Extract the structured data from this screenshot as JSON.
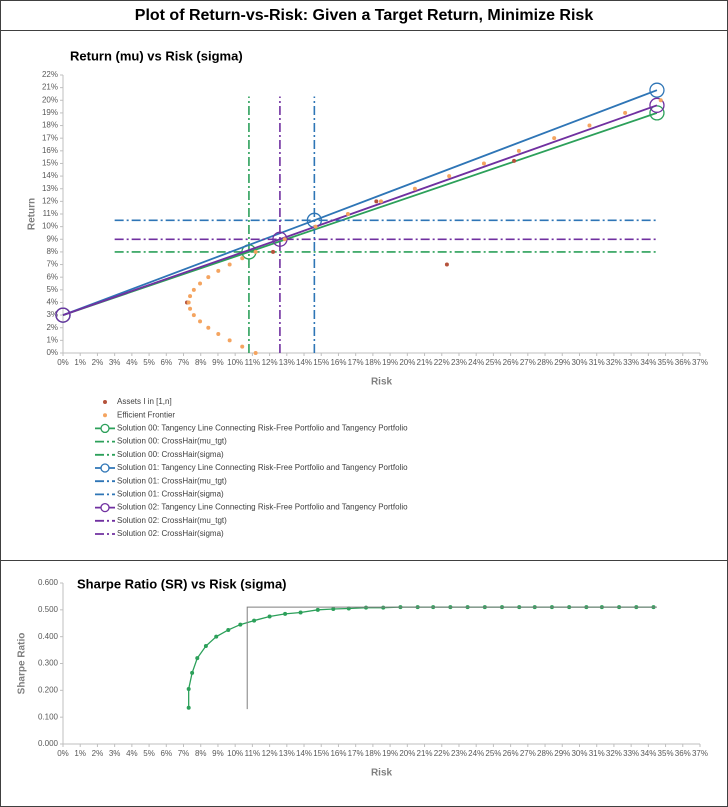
{
  "title": "Plot of Return-vs-Risk: Given a Target Return, Minimize Risk",
  "chart_data": [
    {
      "type": "scatter",
      "title": "Return (mu) vs Risk (sigma)",
      "x_label": "Risk",
      "y_label": "Return",
      "legend": true,
      "grid": false,
      "xlim": [
        0,
        37
      ],
      "xticks": [
        {
          "value": 0,
          "label": "0%"
        },
        {
          "value": 1,
          "label": "1%"
        },
        {
          "value": 2,
          "label": "2%"
        },
        {
          "value": 3,
          "label": "3%"
        },
        {
          "value": 4,
          "label": "4%"
        },
        {
          "value": 5,
          "label": "5%"
        },
        {
          "value": 6,
          "label": "6%"
        },
        {
          "value": 7,
          "label": "7%"
        },
        {
          "value": 8,
          "label": "8%"
        },
        {
          "value": 9,
          "label": "9%"
        },
        {
          "value": 10,
          "label": "10%"
        },
        {
          "value": 11,
          "label": "11%"
        },
        {
          "value": 12,
          "label": "12%"
        },
        {
          "value": 13,
          "label": "13%"
        },
        {
          "value": 14,
          "label": "14%"
        },
        {
          "value": 15,
          "label": "15%"
        },
        {
          "value": 16,
          "label": "16%"
        },
        {
          "value": 17,
          "label": "17%"
        },
        {
          "value": 18,
          "label": "18%"
        },
        {
          "value": 19,
          "label": "19%"
        },
        {
          "value": 20,
          "label": "20%"
        },
        {
          "value": 21,
          "label": "21%"
        },
        {
          "value": 22,
          "label": "22%"
        },
        {
          "value": 23,
          "label": "23%"
        },
        {
          "value": 24,
          "label": "24%"
        },
        {
          "value": 25,
          "label": "25%"
        },
        {
          "value": 26,
          "label": "26%"
        },
        {
          "value": 27,
          "label": "27%"
        },
        {
          "value": 28,
          "label": "28%"
        },
        {
          "value": 29,
          "label": "29%"
        },
        {
          "value": 30,
          "label": "30%"
        },
        {
          "value": 31,
          "label": "31%"
        },
        {
          "value": 32,
          "label": "32%"
        },
        {
          "value": 33,
          "label": "33%"
        },
        {
          "value": 34,
          "label": "34%"
        },
        {
          "value": 35,
          "label": "35%"
        },
        {
          "value": 36,
          "label": "36%"
        },
        {
          "value": 37,
          "label": "37%"
        }
      ],
      "ylim": [
        0,
        22
      ],
      "yticks": [
        {
          "value": 0,
          "label": "0%"
        },
        {
          "value": 1,
          "label": "1%"
        },
        {
          "value": 2,
          "label": "2%"
        },
        {
          "value": 3,
          "label": "3%"
        },
        {
          "value": 4,
          "label": "4%"
        },
        {
          "value": 5,
          "label": "5%"
        },
        {
          "value": 6,
          "label": "6%"
        },
        {
          "value": 7,
          "label": "7%"
        },
        {
          "value": 8,
          "label": "8%"
        },
        {
          "value": 9,
          "label": "9%"
        },
        {
          "value": 10,
          "label": "10%"
        },
        {
          "value": 11,
          "label": "11%"
        },
        {
          "value": 12,
          "label": "12%"
        },
        {
          "value": 13,
          "label": "13%"
        },
        {
          "value": 14,
          "label": "14%"
        },
        {
          "value": 15,
          "label": "15%"
        },
        {
          "value": 16,
          "label": "16%"
        },
        {
          "value": 17,
          "label": "17%"
        },
        {
          "value": 18,
          "label": "18%"
        },
        {
          "value": 19,
          "label": "19%"
        },
        {
          "value": 20,
          "label": "20%"
        },
        {
          "value": 21,
          "label": "21%"
        },
        {
          "value": 22,
          "label": "22%"
        }
      ],
      "series": [
        {
          "name": "Assets I in [1,n]",
          "color": "#b5533c",
          "style": "dots",
          "x": [
            7.2,
            12.2,
            18.2,
            22.3,
            26.2
          ],
          "values": [
            4,
            8,
            12,
            7,
            15.2
          ]
        },
        {
          "name": "Efficient Frontier",
          "color": "#f4a460",
          "style": "dots",
          "x": [
            11.19,
            10.41,
            9.68,
            9.02,
            8.44,
            7.96,
            7.6,
            7.38,
            7.3,
            7.38,
            7.6,
            7.96,
            8.44,
            9.02,
            9.68,
            10.41,
            11.19,
            12.88,
            14.67,
            16.55,
            18.47,
            20.44,
            22.43,
            24.45,
            26.48,
            28.53,
            30.58,
            32.65,
            34.72
          ],
          "values": [
            0,
            0.5,
            1,
            1.5,
            2,
            2.5,
            3,
            3.5,
            4,
            4.5,
            5,
            5.5,
            6,
            6.5,
            7,
            7.5,
            8,
            9,
            10,
            11,
            12,
            13,
            14,
            15,
            16,
            17,
            18,
            19,
            20
          ]
        },
        {
          "name": "Solution 00: Tangency Line Connecting Risk-Free Portfolio and Tangency Portfolio",
          "color": "#2ca05a",
          "style": "line-marker",
          "x": [
            0,
            10.8,
            34.5
          ],
          "values": [
            3,
            8,
            19
          ]
        },
        {
          "name": "Solution 00: CrossHair(mu_tgt)",
          "color": "#2ca05a",
          "style": "dash-dot",
          "x": [
            3,
            34.5
          ],
          "values": [
            8,
            8
          ]
        },
        {
          "name": "Solution 00: CrossHair(sigma)",
          "color": "#2ca05a",
          "style": "dash-dot",
          "x": [
            10.8,
            10.8
          ],
          "values": [
            0,
            20.3
          ]
        },
        {
          "name": "Solution 01: Tangency Line Connecting Risk-Free Portfolio and Tangency Portfolio",
          "color": "#2e75b6",
          "style": "line-marker",
          "x": [
            0,
            14.6,
            34.5
          ],
          "values": [
            3,
            10.5,
            20.8
          ]
        },
        {
          "name": "Solution 01: CrossHair(mu_tgt)",
          "color": "#2e75b6",
          "style": "dash-dot",
          "x": [
            3,
            34.5
          ],
          "values": [
            10.5,
            10.5
          ]
        },
        {
          "name": "Solution 01: CrossHair(sigma)",
          "color": "#2e75b6",
          "style": "dash-dot",
          "x": [
            14.6,
            14.6
          ],
          "values": [
            0,
            20.3
          ]
        },
        {
          "name": "Solution 02: Tangency Line Connecting Risk-Free Portfolio and Tangency Portfolio",
          "color": "#7030a0",
          "style": "line-marker",
          "x": [
            0,
            12.6,
            34.5
          ],
          "values": [
            3,
            9,
            19.6
          ]
        },
        {
          "name": "Solution 02: CrossHair(mu_tgt)",
          "color": "#7030a0",
          "style": "dash-dot",
          "x": [
            3,
            34.5
          ],
          "values": [
            9,
            9
          ]
        },
        {
          "name": "Solution 02: CrossHair(sigma)",
          "color": "#7030a0",
          "style": "dash-dot",
          "x": [
            12.6,
            12.6
          ],
          "values": [
            0,
            20.3
          ]
        }
      ]
    },
    {
      "type": "line",
      "title": "Sharpe Ratio (SR) vs Risk (sigma)",
      "x_label": "Risk",
      "y_label": "Sharpe Ratio",
      "legend": false,
      "grid": false,
      "xlim": [
        0,
        37
      ],
      "xticks": [
        {
          "value": 0,
          "label": "0%"
        },
        {
          "value": 1,
          "label": "1%"
        },
        {
          "value": 2,
          "label": "2%"
        },
        {
          "value": 3,
          "label": "3%"
        },
        {
          "value": 4,
          "label": "4%"
        },
        {
          "value": 5,
          "label": "5%"
        },
        {
          "value": 6,
          "label": "6%"
        },
        {
          "value": 7,
          "label": "7%"
        },
        {
          "value": 8,
          "label": "8%"
        },
        {
          "value": 9,
          "label": "9%"
        },
        {
          "value": 10,
          "label": "10%"
        },
        {
          "value": 11,
          "label": "11%"
        },
        {
          "value": 12,
          "label": "12%"
        },
        {
          "value": 13,
          "label": "13%"
        },
        {
          "value": 14,
          "label": "14%"
        },
        {
          "value": 15,
          "label": "15%"
        },
        {
          "value": 16,
          "label": "16%"
        },
        {
          "value": 17,
          "label": "17%"
        },
        {
          "value": 18,
          "label": "18%"
        },
        {
          "value": 19,
          "label": "19%"
        },
        {
          "value": 20,
          "label": "20%"
        },
        {
          "value": 21,
          "label": "21%"
        },
        {
          "value": 22,
          "label": "22%"
        },
        {
          "value": 23,
          "label": "23%"
        },
        {
          "value": 24,
          "label": "24%"
        },
        {
          "value": 25,
          "label": "25%"
        },
        {
          "value": 26,
          "label": "26%"
        },
        {
          "value": 27,
          "label": "27%"
        },
        {
          "value": 28,
          "label": "28%"
        },
        {
          "value": 29,
          "label": "29%"
        },
        {
          "value": 30,
          "label": "30%"
        },
        {
          "value": 31,
          "label": "31%"
        },
        {
          "value": 32,
          "label": "32%"
        },
        {
          "value": 33,
          "label": "33%"
        },
        {
          "value": 34,
          "label": "34%"
        },
        {
          "value": 35,
          "label": "35%"
        },
        {
          "value": 36,
          "label": "36%"
        },
        {
          "value": 37,
          "label": "37%"
        }
      ],
      "ylim": [
        0,
        0.6
      ],
      "yticks": [
        {
          "value": 0,
          "label": "0.000"
        },
        {
          "value": 0.1,
          "label": "0.100"
        },
        {
          "value": 0.2,
          "label": "0.200"
        },
        {
          "value": 0.3,
          "label": "0.300"
        },
        {
          "value": 0.4,
          "label": "0.400"
        },
        {
          "value": 0.5,
          "label": "0.500"
        },
        {
          "value": 0.6,
          "label": "0.600"
        }
      ],
      "series": [
        {
          "color": "#2ca05a",
          "style": "line-dots",
          "x": [
            7.3,
            7.3,
            7.5,
            7.8,
            8.3,
            8.9,
            9.6,
            10.3,
            11.1,
            12,
            12.9,
            13.8,
            14.8,
            15.7,
            16.6,
            17.6,
            18.6,
            19.6,
            20.6,
            21.5,
            22.5,
            23.5,
            24.5,
            25.5,
            26.5,
            27.4,
            28.4,
            29.4,
            30.4,
            31.3,
            32.3,
            33.3,
            34.3
          ],
          "values": [
            0.135,
            0.205,
            0.265,
            0.32,
            0.365,
            0.4,
            0.425,
            0.445,
            0.46,
            0.475,
            0.485,
            0.49,
            0.5,
            0.503,
            0.505,
            0.508,
            0.508,
            0.51,
            0.51,
            0.51,
            0.51,
            0.51,
            0.51,
            0.51,
            0.51,
            0.51,
            0.51,
            0.51,
            0.51,
            0.51,
            0.51,
            0.51,
            0.51
          ]
        },
        {
          "color": "#7f7f7f",
          "style": "line",
          "x": [
            10.7,
            10.7,
            34.5
          ],
          "values": [
            0.13,
            0.51,
            0.51
          ]
        }
      ]
    }
  ]
}
